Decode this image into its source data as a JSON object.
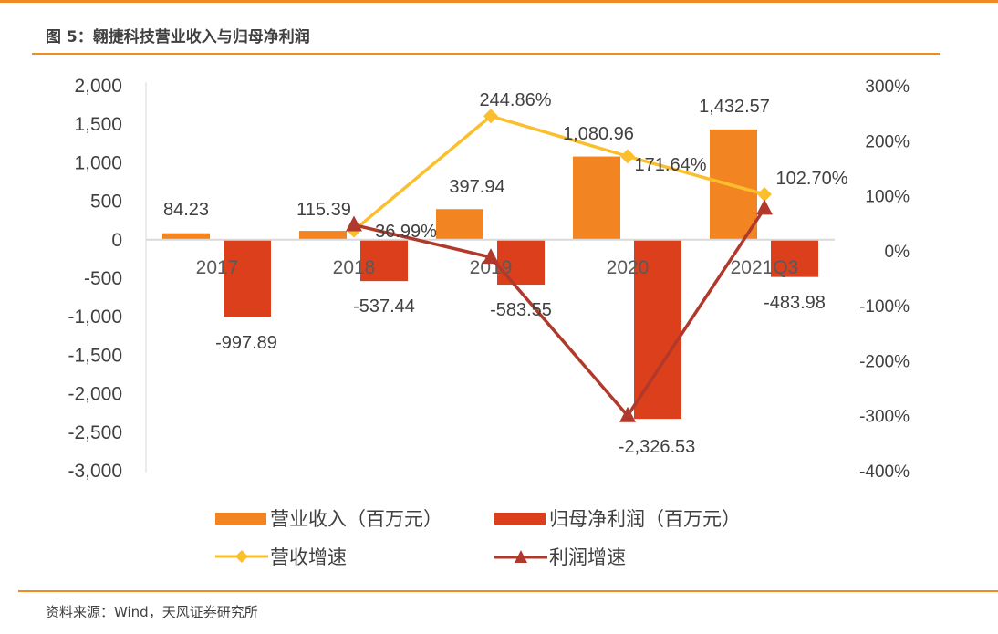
{
  "title": "图 5：翱捷科技营业收入与归母净利润",
  "source": "资料来源：Wind，天风证券研究所",
  "chart_data": {
    "type": "bar",
    "categories": [
      "2017",
      "2018",
      "2019",
      "2020",
      "2021Q3"
    ],
    "left_axis": {
      "ylim": [
        -3000,
        2000
      ],
      "ticks": [
        "2,000",
        "1,500",
        "1,000",
        "500",
        "0",
        "-500",
        "-1,000",
        "-1,500",
        "-2,000",
        "-2,500",
        "-3,000"
      ]
    },
    "right_axis": {
      "ylim": [
        -400,
        300
      ],
      "ticks": [
        "300%",
        "200%",
        "100%",
        "0%",
        "-100%",
        "-200%",
        "-300%",
        "-400%"
      ]
    },
    "grid": false,
    "legend_placement": "bottom",
    "series": [
      {
        "name": "营业收入（百万元）",
        "type": "bar",
        "axis": "left",
        "color": "#f28522",
        "values": [
          84.23,
          115.39,
          397.94,
          1080.96,
          1432.57
        ],
        "labels": [
          "84.23",
          "115.39",
          "397.94",
          "1,080.96",
          "1,432.57"
        ]
      },
      {
        "name": "归母净利润（百万元）",
        "type": "bar",
        "axis": "left",
        "color": "#dc3f1c",
        "values": [
          -997.89,
          -537.44,
          -583.55,
          -2326.53,
          -483.98
        ],
        "labels": [
          "-997.89",
          "-537.44",
          "-583.55",
          "-2,326.53",
          "-483.98"
        ]
      },
      {
        "name": "营收增速",
        "type": "line",
        "axis": "right",
        "marker": "diamond",
        "color": "#fbbf2d",
        "values": [
          null,
          36.99,
          244.86,
          171.64,
          102.7
        ],
        "labels": [
          "",
          "36.99%",
          "244.86%",
          "171.64%",
          "102.70%"
        ]
      },
      {
        "name": "利润增速",
        "type": "line",
        "axis": "right",
        "marker": "triangle",
        "color": "#b0392b",
        "values": [
          null,
          47,
          -12,
          -300,
          77
        ]
      }
    ]
  }
}
